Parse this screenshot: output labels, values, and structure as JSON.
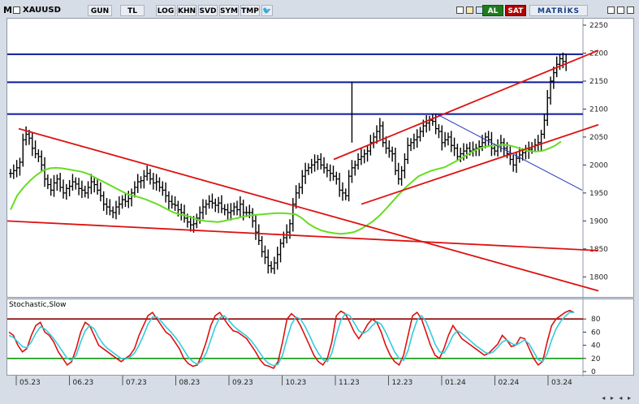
{
  "header": {
    "symbol": "XAUUSD",
    "m_label": "M",
    "period_buttons": [
      "GUN",
      "TL",
      "LOG",
      "KHN",
      "SVD",
      "SYM",
      "TMP"
    ],
    "buy_label": "AL",
    "sell_label": "SAT",
    "brand": "MATRİKS"
  },
  "colors": {
    "price_bars": "#000000",
    "ma_line": "#66dd22",
    "trend_lines": "#dd1111",
    "resistance_lines": "#0a1a9a",
    "stoch_main": "#dd1111",
    "stoch_signal": "#33ccdd",
    "stoch_upper": "#8b0000",
    "stoch_lower": "#119911"
  },
  "chart_data": [
    {
      "type": "bar",
      "subtype": "ohlc",
      "yticks": [
        1800,
        1850,
        1900,
        1950,
        2000,
        2050,
        2100,
        2150,
        2200,
        2250
      ],
      "xticks": [
        "05.23",
        "06.23",
        "07.23",
        "08.23",
        "09.23",
        "10.23",
        "11.23",
        "12.23",
        "01.24",
        "02.24",
        "03.24"
      ],
      "ylim": [
        1770,
        2250
      ],
      "horizontal_levels": [
        2198,
        2148,
        2091
      ],
      "close_series": [
        1985,
        1990,
        1995,
        2005,
        2045,
        2055,
        2048,
        2030,
        2020,
        2015,
        2000,
        1975,
        1965,
        1955,
        1968,
        1975,
        1960,
        1950,
        1958,
        1962,
        1970,
        1966,
        1958,
        1955,
        1950,
        1960,
        1970,
        1965,
        1955,
        1945,
        1930,
        1925,
        1918,
        1915,
        1925,
        1930,
        1938,
        1935,
        1940,
        1950,
        1960,
        1970,
        1972,
        1980,
        1985,
        1975,
        1968,
        1970,
        1960,
        1955,
        1945,
        1935,
        1930,
        1928,
        1920,
        1915,
        1905,
        1898,
        1893,
        1895,
        1905,
        1915,
        1925,
        1930,
        1935,
        1932,
        1928,
        1932,
        1922,
        1920,
        1915,
        1918,
        1925,
        1920,
        1930,
        1915,
        1915,
        1915,
        1900,
        1880,
        1865,
        1845,
        1835,
        1820,
        1815,
        1825,
        1840,
        1860,
        1870,
        1880,
        1895,
        1930,
        1950,
        1960,
        1980,
        1990,
        1995,
        2000,
        2005,
        2010,
        2000,
        1995,
        1990,
        1985,
        1980,
        1975,
        1955,
        1950,
        1945,
        1980,
        1995,
        2000,
        2010,
        2015,
        2020,
        2025,
        2040,
        2050,
        2060,
        2070,
        2040,
        2030,
        2025,
        2020,
        1990,
        1975,
        1990,
        2010,
        2035,
        2040,
        2045,
        2050,
        2060,
        2070,
        2075,
        2080,
        2078,
        2065,
        2060,
        2040,
        2045,
        2050,
        2035,
        2030,
        2015,
        2020,
        2025,
        2030,
        2025,
        2028,
        2030,
        2033,
        2040,
        2050,
        2045,
        2030,
        2025,
        2035,
        2040,
        2030,
        2020,
        2010,
        2000,
        2012,
        2018,
        2022,
        2025,
        2028,
        2033,
        2036,
        2040,
        2055,
        2080,
        2120,
        2150,
        2165,
        2180,
        2190,
        2185,
        2182
      ],
      "ma_series": [
        1920,
        1945,
        1960,
        1972,
        1982,
        1990,
        1994,
        1995,
        1994,
        1992,
        1990,
        1988,
        1984,
        1978,
        1972,
        1966,
        1960,
        1954,
        1948,
        1945,
        1942,
        1938,
        1933,
        1928,
        1922,
        1916,
        1912,
        1910,
        1906,
        1902,
        1900,
        1899,
        1898,
        1900,
        1903,
        1905,
        1908,
        1910,
        1911,
        1912,
        1913,
        1914,
        1914,
        1913,
        1912,
        1905,
        1895,
        1888,
        1883,
        1880,
        1878,
        1877,
        1878,
        1880,
        1885,
        1892,
        1900,
        1910,
        1922,
        1935,
        1948,
        1960,
        1970,
        1980,
        1985,
        1990,
        1993,
        1996,
        2002,
        2008,
        2015,
        2022,
        2028,
        2032,
        2034,
        2035,
        2036,
        2035,
        2032,
        2028,
        2025,
        2024,
        2025,
        2029,
        2034,
        2042
      ],
      "trend_lines": [
        {
          "from": [
            "05.23",
            2065
          ],
          "to": [
            "03.24",
            1775
          ]
        },
        {
          "from": [
            "05.23",
            1900
          ],
          "to": [
            "03.24",
            1847
          ]
        },
        {
          "from": [
            "11.23",
            2010
          ],
          "to": [
            "03.24",
            2205
          ]
        },
        {
          "from": [
            "11.23",
            1930
          ],
          "to": [
            "03.24",
            2072
          ]
        }
      ],
      "blue_trend_line": {
        "from": [
          "01.24",
          2090
        ],
        "to": [
          "03.24",
          1955
        ]
      }
    },
    {
      "type": "line",
      "title": "Stochastic,Slow",
      "yticks": [
        0,
        20,
        40,
        60,
        80
      ],
      "ylim": [
        0,
        100
      ],
      "levels": [
        80,
        20
      ],
      "series": [
        {
          "values": [
            60,
            55,
            40,
            30,
            35,
            55,
            70,
            75,
            60,
            55,
            45,
            30,
            20,
            10,
            15,
            35,
            60,
            75,
            70,
            55,
            40,
            35,
            30,
            25,
            20,
            15,
            20,
            25,
            35,
            55,
            70,
            85,
            90,
            80,
            70,
            60,
            55,
            45,
            35,
            20,
            12,
            8,
            10,
            25,
            45,
            70,
            85,
            90,
            80,
            70,
            62,
            60,
            55,
            50,
            40,
            30,
            18,
            10,
            8,
            5,
            15,
            45,
            80,
            88,
            82,
            70,
            55,
            40,
            25,
            15,
            10,
            20,
            45,
            85,
            92,
            88,
            75,
            60,
            50,
            60,
            72,
            80,
            75,
            60,
            40,
            25,
            15,
            10,
            25,
            55,
            85,
            90,
            80,
            60,
            40,
            25,
            20,
            35,
            55,
            70,
            60,
            50,
            45,
            40,
            35,
            30,
            25,
            28,
            35,
            42,
            55,
            48,
            38,
            40,
            52,
            50,
            35,
            20,
            10,
            15,
            45,
            70,
            80,
            85,
            90,
            93,
            90
          ]
        },
        {
          "values": [
            55,
            52,
            45,
            38,
            36,
            45,
            58,
            68,
            65,
            58,
            50,
            40,
            30,
            20,
            17,
            25,
            45,
            62,
            70,
            65,
            52,
            42,
            35,
            30,
            25,
            20,
            19,
            22,
            28,
            40,
            55,
            72,
            83,
            83,
            76,
            68,
            61,
            53,
            44,
            33,
            22,
            15,
            11,
            16,
            28,
            48,
            68,
            82,
            85,
            78,
            70,
            64,
            59,
            54,
            47,
            38,
            28,
            18,
            12,
            9,
            11,
            25,
            50,
            72,
            83,
            80,
            69,
            55,
            40,
            28,
            18,
            15,
            28,
            55,
            78,
            88,
            85,
            74,
            62,
            58,
            62,
            70,
            76,
            72,
            60,
            45,
            30,
            20,
            17,
            32,
            58,
            78,
            85,
            76,
            60,
            42,
            30,
            28,
            40,
            55,
            62,
            58,
            52,
            46,
            40,
            35,
            30,
            27,
            30,
            37,
            45,
            48,
            43,
            40,
            44,
            48,
            42,
            30,
            18,
            15,
            27,
            48,
            65,
            76,
            84,
            90,
            90
          ]
        }
      ]
    }
  ]
}
